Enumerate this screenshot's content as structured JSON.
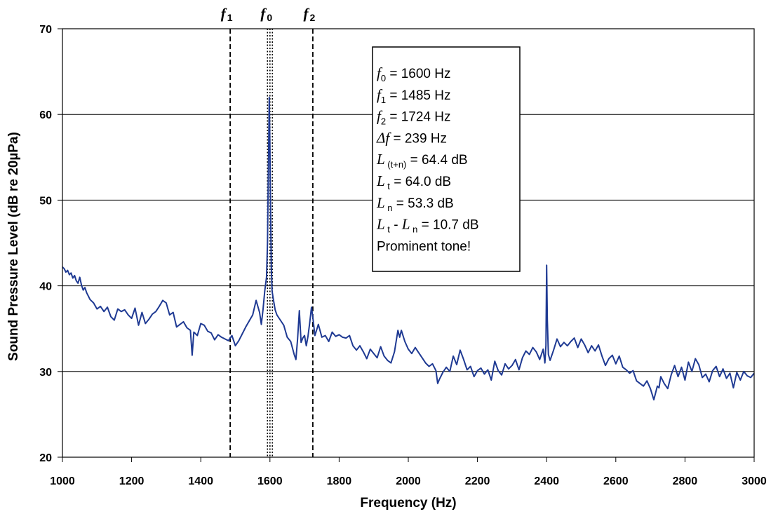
{
  "chart_data": {
    "type": "line",
    "title": "",
    "xlabel": "Frequency (Hz)",
    "ylabel": "Sound Pressure Level (dB re 20µPa)",
    "xlim": [
      1000,
      3000
    ],
    "ylim": [
      20,
      70
    ],
    "x_ticks": [
      1000,
      1200,
      1400,
      1600,
      1800,
      2000,
      2200,
      2400,
      2600,
      2800,
      3000
    ],
    "y_ticks": [
      20,
      30,
      40,
      50,
      60,
      70
    ],
    "grid": "horizontal",
    "legend": "none",
    "series": [
      {
        "color": "#1f3a93",
        "x": [
          1000,
          1005,
          1010,
          1015,
          1020,
          1025,
          1030,
          1035,
          1040,
          1045,
          1050,
          1055,
          1060,
          1065,
          1070,
          1080,
          1090,
          1100,
          1110,
          1120,
          1130,
          1140,
          1150,
          1160,
          1170,
          1180,
          1190,
          1200,
          1210,
          1220,
          1230,
          1240,
          1250,
          1260,
          1270,
          1280,
          1290,
          1300,
          1310,
          1320,
          1330,
          1340,
          1350,
          1360,
          1370,
          1375,
          1380,
          1390,
          1400,
          1410,
          1420,
          1430,
          1440,
          1450,
          1460,
          1470,
          1480,
          1490,
          1500,
          1510,
          1520,
          1530,
          1540,
          1550,
          1560,
          1570,
          1575,
          1580,
          1585,
          1590,
          1593,
          1596,
          1598,
          1600,
          1602,
          1604,
          1606,
          1610,
          1615,
          1620,
          1630,
          1640,
          1650,
          1660,
          1670,
          1675,
          1680,
          1685,
          1690,
          1695,
          1700,
          1705,
          1710,
          1715,
          1720,
          1725,
          1730,
          1740,
          1750,
          1760,
          1770,
          1780,
          1790,
          1800,
          1810,
          1820,
          1830,
          1840,
          1850,
          1860,
          1870,
          1880,
          1890,
          1900,
          1910,
          1920,
          1930,
          1940,
          1950,
          1960,
          1970,
          1975,
          1980,
          1990,
          2000,
          2010,
          2020,
          2030,
          2040,
          2050,
          2060,
          2070,
          2080,
          2085,
          2090,
          2100,
          2110,
          2120,
          2130,
          2140,
          2150,
          2160,
          2170,
          2180,
          2190,
          2200,
          2210,
          2220,
          2230,
          2240,
          2250,
          2260,
          2270,
          2280,
          2290,
          2300,
          2310,
          2320,
          2330,
          2340,
          2350,
          2360,
          2370,
          2380,
          2390,
          2395,
          2398,
          2400,
          2402,
          2405,
          2410,
          2420,
          2430,
          2440,
          2450,
          2460,
          2470,
          2480,
          2490,
          2500,
          2510,
          2520,
          2530,
          2540,
          2550,
          2560,
          2570,
          2580,
          2590,
          2600,
          2610,
          2620,
          2630,
          2640,
          2650,
          2660,
          2670,
          2680,
          2690,
          2700,
          2710,
          2720,
          2725,
          2730,
          2740,
          2750,
          2760,
          2770,
          2780,
          2790,
          2800,
          2810,
          2820,
          2830,
          2840,
          2850,
          2860,
          2870,
          2880,
          2890,
          2900,
          2910,
          2920,
          2930,
          2940,
          2950,
          2960,
          2970,
          2980,
          2990,
          3000
        ],
        "values": [
          42.2,
          42.0,
          41.6,
          41.8,
          41.3,
          41.5,
          40.9,
          41.2,
          40.6,
          40.3,
          41.0,
          40.1,
          39.5,
          39.8,
          39.2,
          38.4,
          38.0,
          37.3,
          37.6,
          37.0,
          37.5,
          36.4,
          36.0,
          37.3,
          37.0,
          37.2,
          36.6,
          36.2,
          37.4,
          35.4,
          36.9,
          35.6,
          36.1,
          36.7,
          37.0,
          37.6,
          38.3,
          38.0,
          36.6,
          36.9,
          35.2,
          35.5,
          35.8,
          35.1,
          34.8,
          31.9,
          34.6,
          34.2,
          35.6,
          35.4,
          34.7,
          34.5,
          33.7,
          34.3,
          34.0,
          33.8,
          33.6,
          34.2,
          33.0,
          33.6,
          34.4,
          35.2,
          35.9,
          36.6,
          38.3,
          36.9,
          35.5,
          37.2,
          39.4,
          41.0,
          45.0,
          55.0,
          62.0,
          56.0,
          48.0,
          42.0,
          39.4,
          38.4,
          37.2,
          36.6,
          36.0,
          35.4,
          34.0,
          33.5,
          32.0,
          31.4,
          33.8,
          37.1,
          33.4,
          33.9,
          34.2,
          33.0,
          34.1,
          35.7,
          37.5,
          36.0,
          34.2,
          35.5,
          34.0,
          34.2,
          33.5,
          34.6,
          34.1,
          34.3,
          34.0,
          33.9,
          34.2,
          33.0,
          32.5,
          33.0,
          32.3,
          31.5,
          32.6,
          32.1,
          31.6,
          32.9,
          31.8,
          31.3,
          31.0,
          32.3,
          34.8,
          34.0,
          34.8,
          33.5,
          32.6,
          32.1,
          32.8,
          32.2,
          31.6,
          31.0,
          30.6,
          30.9,
          30.1,
          28.6,
          29.1,
          29.9,
          30.5,
          30.0,
          31.8,
          30.8,
          32.5,
          31.4,
          30.2,
          30.6,
          29.4,
          30.1,
          30.4,
          29.7,
          30.2,
          29.0,
          31.2,
          30.1,
          29.6,
          30.9,
          30.3,
          30.7,
          31.4,
          30.2,
          31.6,
          32.4,
          32.0,
          32.8,
          32.3,
          31.4,
          32.6,
          31.0,
          33.0,
          42.4,
          36.0,
          32.0,
          31.3,
          32.5,
          33.8,
          32.9,
          33.4,
          33.0,
          33.5,
          33.9,
          32.8,
          33.8,
          33.1,
          32.2,
          33.0,
          32.4,
          33.1,
          31.8,
          30.7,
          31.5,
          31.9,
          30.9,
          31.8,
          30.5,
          30.2,
          29.8,
          30.1,
          28.9,
          28.6,
          28.3,
          28.9,
          28.0,
          26.7,
          28.3,
          28.1,
          29.4,
          28.6,
          28.0,
          29.6,
          30.7,
          29.4,
          30.5,
          29.0,
          31.1,
          30.0,
          31.5,
          30.8,
          29.3,
          29.7,
          28.8,
          30.1,
          30.6,
          29.4,
          30.3,
          29.2,
          29.8,
          28.1,
          29.9,
          29.0,
          30.0,
          29.5,
          29.3,
          29.8
        ]
      }
    ],
    "markers": [
      {
        "symbol": "f",
        "sub": "1",
        "x": 1485,
        "style": "dashed"
      },
      {
        "symbol": "f",
        "sub": "0",
        "x": 1600,
        "style": "dotted"
      },
      {
        "symbol": "f",
        "sub": "2",
        "x": 1724,
        "style": "dashed"
      }
    ],
    "annotation_lines": [
      {
        "sym": "f",
        "sub": "0",
        "text": " = 1600 Hz"
      },
      {
        "sym": "f",
        "sub": "1",
        "text": " = 1485 Hz"
      },
      {
        "sym": "f",
        "sub": "2",
        "text": " = 1724 Hz"
      },
      {
        "sym": "Δf",
        "sub": "",
        "text": " = 239 Hz"
      },
      {
        "sym": "L",
        "sub": " (t+n)",
        "text": " = 64.4 dB"
      },
      {
        "sym": "L",
        "sub": " t",
        "text": " = 64.0 dB"
      },
      {
        "sym": "L",
        "sub": " n",
        "text": " = 53.3 dB"
      },
      {
        "sym": "L",
        "sub": " t",
        "text": " - ",
        "sym2": "L",
        "sub2": " n",
        "text2": " = 10.7 dB"
      },
      {
        "sym": "",
        "sub": "",
        "text": "Prominent tone!"
      }
    ]
  }
}
